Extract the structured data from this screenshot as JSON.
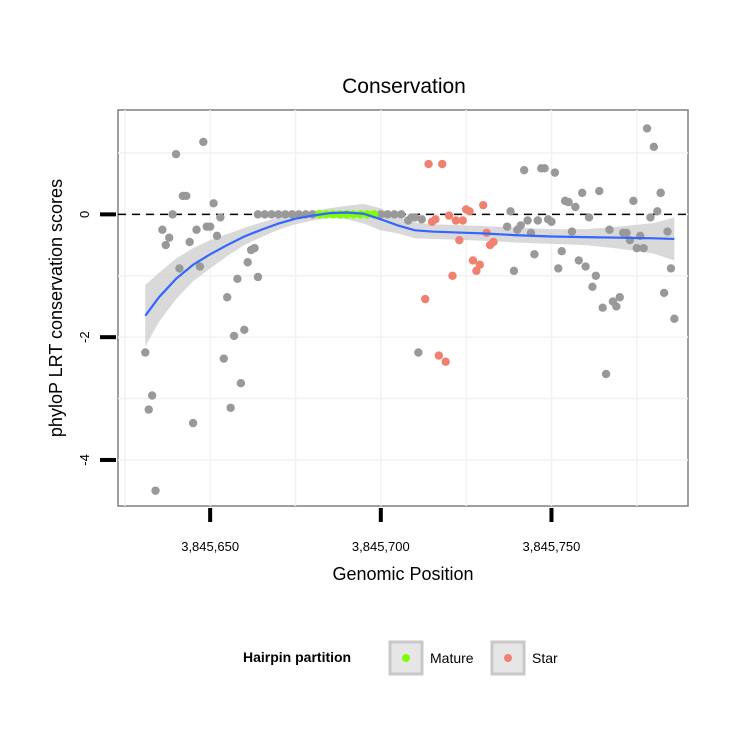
{
  "chart_data": {
    "type": "scatter",
    "title": "Conservation",
    "xlabel": "Genomic Position",
    "ylabel": "phyloP LRT conservation scores",
    "xlim": [
      3845623,
      3845790
    ],
    "ylim": [
      -4.75,
      1.7
    ],
    "x_ticks": [
      3845650,
      3845700,
      3845750
    ],
    "x_tick_labels": [
      "3,845,650",
      "3,845,700",
      "3,845,750"
    ],
    "y_ticks": [
      -4,
      -2,
      0
    ],
    "y_tick_labels": [
      "-4",
      "-2",
      "0"
    ],
    "reference_line_y": 0,
    "grid": true,
    "legend": {
      "title": "Hairpin partition",
      "position": "bottom",
      "entries": [
        {
          "label": "Mature",
          "color": "#7fff00"
        },
        {
          "label": "Star",
          "color": "#f08070"
        }
      ]
    },
    "colors": {
      "other": "#999999",
      "mature": "#7fff00",
      "star": "#f08070",
      "smooth": "#3366ff",
      "band": "#cccccc"
    },
    "series": [
      {
        "name": "",
        "category": "other",
        "points": [
          [
            3845631,
            -2.25
          ],
          [
            3845632,
            -3.18
          ],
          [
            3845633,
            -2.95
          ],
          [
            3845634,
            -4.5
          ],
          [
            3845636,
            -0.25
          ],
          [
            3845637,
            -0.5
          ],
          [
            3845638,
            -0.38
          ],
          [
            3845639,
            0.0
          ],
          [
            3845640,
            0.98
          ],
          [
            3845641,
            -0.88
          ],
          [
            3845642,
            0.3
          ],
          [
            3845643,
            0.3
          ],
          [
            3845644,
            -0.45
          ],
          [
            3845645,
            -3.4
          ],
          [
            3845646,
            -0.25
          ],
          [
            3845647,
            -0.85
          ],
          [
            3845648,
            1.18
          ],
          [
            3845649,
            -0.2
          ],
          [
            3845650,
            -0.2
          ],
          [
            3845651,
            0.18
          ],
          [
            3845652,
            -0.35
          ],
          [
            3845653,
            -0.05
          ],
          [
            3845654,
            -2.35
          ],
          [
            3845655,
            -1.35
          ],
          [
            3845656,
            -3.15
          ],
          [
            3845657,
            -1.98
          ],
          [
            3845658,
            -1.05
          ],
          [
            3845659,
            -2.75
          ],
          [
            3845660,
            -1.88
          ],
          [
            3845661,
            -0.78
          ],
          [
            3845662,
            -0.58
          ],
          [
            3845663,
            -0.55
          ],
          [
            3845664,
            -1.02
          ],
          [
            3845664,
            0.0
          ],
          [
            3845666,
            0.0
          ],
          [
            3845668,
            0.0
          ],
          [
            3845670,
            0.0
          ],
          [
            3845672,
            0.0
          ],
          [
            3845674,
            0.0
          ],
          [
            3845676,
            0.0
          ],
          [
            3845678,
            0.0
          ],
          [
            3845680,
            0.0
          ],
          [
            3845700,
            0.0
          ],
          [
            3845702,
            0.0
          ],
          [
            3845704,
            0.0
          ],
          [
            3845706,
            0.0
          ],
          [
            3845708,
            -0.1
          ],
          [
            3845709,
            -0.05
          ],
          [
            3845710,
            -0.05
          ],
          [
            3845711,
            -2.25
          ],
          [
            3845712,
            -0.08
          ],
          [
            3845737,
            -0.2
          ],
          [
            3845738,
            0.05
          ],
          [
            3845739,
            -0.92
          ],
          [
            3845740,
            -0.25
          ],
          [
            3845741,
            -0.18
          ],
          [
            3845742,
            0.72
          ],
          [
            3845743,
            -0.1
          ],
          [
            3845744,
            -0.3
          ],
          [
            3845745,
            -0.65
          ],
          [
            3845746,
            -0.1
          ],
          [
            3845747,
            0.75
          ],
          [
            3845748,
            0.75
          ],
          [
            3845749,
            -0.08
          ],
          [
            3845750,
            -0.12
          ],
          [
            3845751,
            0.68
          ],
          [
            3845752,
            -0.88
          ],
          [
            3845753,
            -0.6
          ],
          [
            3845754,
            0.22
          ],
          [
            3845755,
            0.2
          ],
          [
            3845756,
            -0.28
          ],
          [
            3845757,
            0.12
          ],
          [
            3845758,
            -0.75
          ],
          [
            3845759,
            0.35
          ],
          [
            3845760,
            -0.85
          ],
          [
            3845761,
            -0.05
          ],
          [
            3845762,
            -1.18
          ],
          [
            3845763,
            -1.0
          ],
          [
            3845764,
            0.38
          ],
          [
            3845765,
            -1.52
          ],
          [
            3845766,
            -2.6
          ],
          [
            3845767,
            -0.25
          ],
          [
            3845768,
            -1.42
          ],
          [
            3845769,
            -1.5
          ],
          [
            3845770,
            -1.35
          ],
          [
            3845771,
            -0.3
          ],
          [
            3845772,
            -0.3
          ],
          [
            3845773,
            -0.42
          ],
          [
            3845774,
            0.22
          ],
          [
            3845775,
            -0.55
          ],
          [
            3845776,
            -0.35
          ],
          [
            3845777,
            -0.55
          ],
          [
            3845778,
            1.4
          ],
          [
            3845779,
            -0.05
          ],
          [
            3845780,
            1.1
          ],
          [
            3845781,
            0.05
          ],
          [
            3845782,
            0.35
          ],
          [
            3845782,
            0.35
          ],
          [
            3845783,
            -1.28
          ],
          [
            3845784,
            -0.28
          ],
          [
            3845785,
            -0.88
          ],
          [
            3845786,
            -1.7
          ]
        ]
      },
      {
        "name": "Mature",
        "category": "mature",
        "points": [
          [
            3845682,
            0.0
          ],
          [
            3845684,
            0.0
          ],
          [
            3845686,
            0.0
          ],
          [
            3845688,
            0.0
          ],
          [
            3845690,
            0.0
          ],
          [
            3845692,
            0.0
          ],
          [
            3845694,
            0.0
          ],
          [
            3845696,
            0.0
          ],
          [
            3845698,
            0.0
          ]
        ]
      },
      {
        "name": "Star",
        "category": "star",
        "points": [
          [
            3845713,
            -1.38
          ],
          [
            3845714,
            0.82
          ],
          [
            3845715,
            -0.12
          ],
          [
            3845716,
            -0.08
          ],
          [
            3845717,
            -2.3
          ],
          [
            3845718,
            0.82
          ],
          [
            3845719,
            -2.4
          ],
          [
            3845720,
            -0.02
          ],
          [
            3845721,
            -1.0
          ],
          [
            3845722,
            -0.1
          ],
          [
            3845723,
            -0.42
          ],
          [
            3845724,
            -0.1
          ],
          [
            3845725,
            0.08
          ],
          [
            3845726,
            0.05
          ],
          [
            3845727,
            -0.75
          ],
          [
            3845728,
            -0.92
          ],
          [
            3845729,
            -0.82
          ],
          [
            3845730,
            0.15
          ],
          [
            3845731,
            -0.3
          ],
          [
            3845732,
            -0.5
          ],
          [
            3845733,
            -0.45
          ]
        ]
      }
    ],
    "smooth_line": {
      "x": [
        3845631,
        3845635,
        3845640,
        3845645,
        3845650,
        3845655,
        3845660,
        3845665,
        3845670,
        3845675,
        3845680,
        3845685,
        3845690,
        3845695,
        3845700,
        3845705,
        3845710,
        3845715,
        3845720,
        3845725,
        3845730,
        3845740,
        3845750,
        3845760,
        3845770,
        3845780,
        3845786
      ],
      "y": [
        -1.65,
        -1.35,
        -1.05,
        -0.82,
        -0.65,
        -0.5,
        -0.36,
        -0.25,
        -0.15,
        -0.07,
        -0.02,
        0.02,
        0.03,
        0.01,
        -0.08,
        -0.18,
        -0.26,
        -0.28,
        -0.29,
        -0.3,
        -0.31,
        -0.34,
        -0.36,
        -0.37,
        -0.38,
        -0.39,
        -0.4
      ],
      "band_upper": [
        -1.15,
        -0.95,
        -0.72,
        -0.55,
        -0.42,
        -0.32,
        -0.22,
        -0.13,
        -0.05,
        0.02,
        0.06,
        0.1,
        0.14,
        0.17,
        0.1,
        -0.05,
        -0.13,
        -0.16,
        -0.17,
        -0.18,
        -0.19,
        -0.22,
        -0.24,
        -0.24,
        -0.2,
        -0.14,
        -0.05
      ],
      "band_lower": [
        -2.15,
        -1.75,
        -1.38,
        -1.09,
        -0.88,
        -0.68,
        -0.5,
        -0.37,
        -0.25,
        -0.16,
        -0.1,
        -0.06,
        -0.08,
        -0.15,
        -0.26,
        -0.31,
        -0.39,
        -0.4,
        -0.41,
        -0.42,
        -0.43,
        -0.46,
        -0.48,
        -0.5,
        -0.56,
        -0.64,
        -0.75
      ]
    }
  }
}
